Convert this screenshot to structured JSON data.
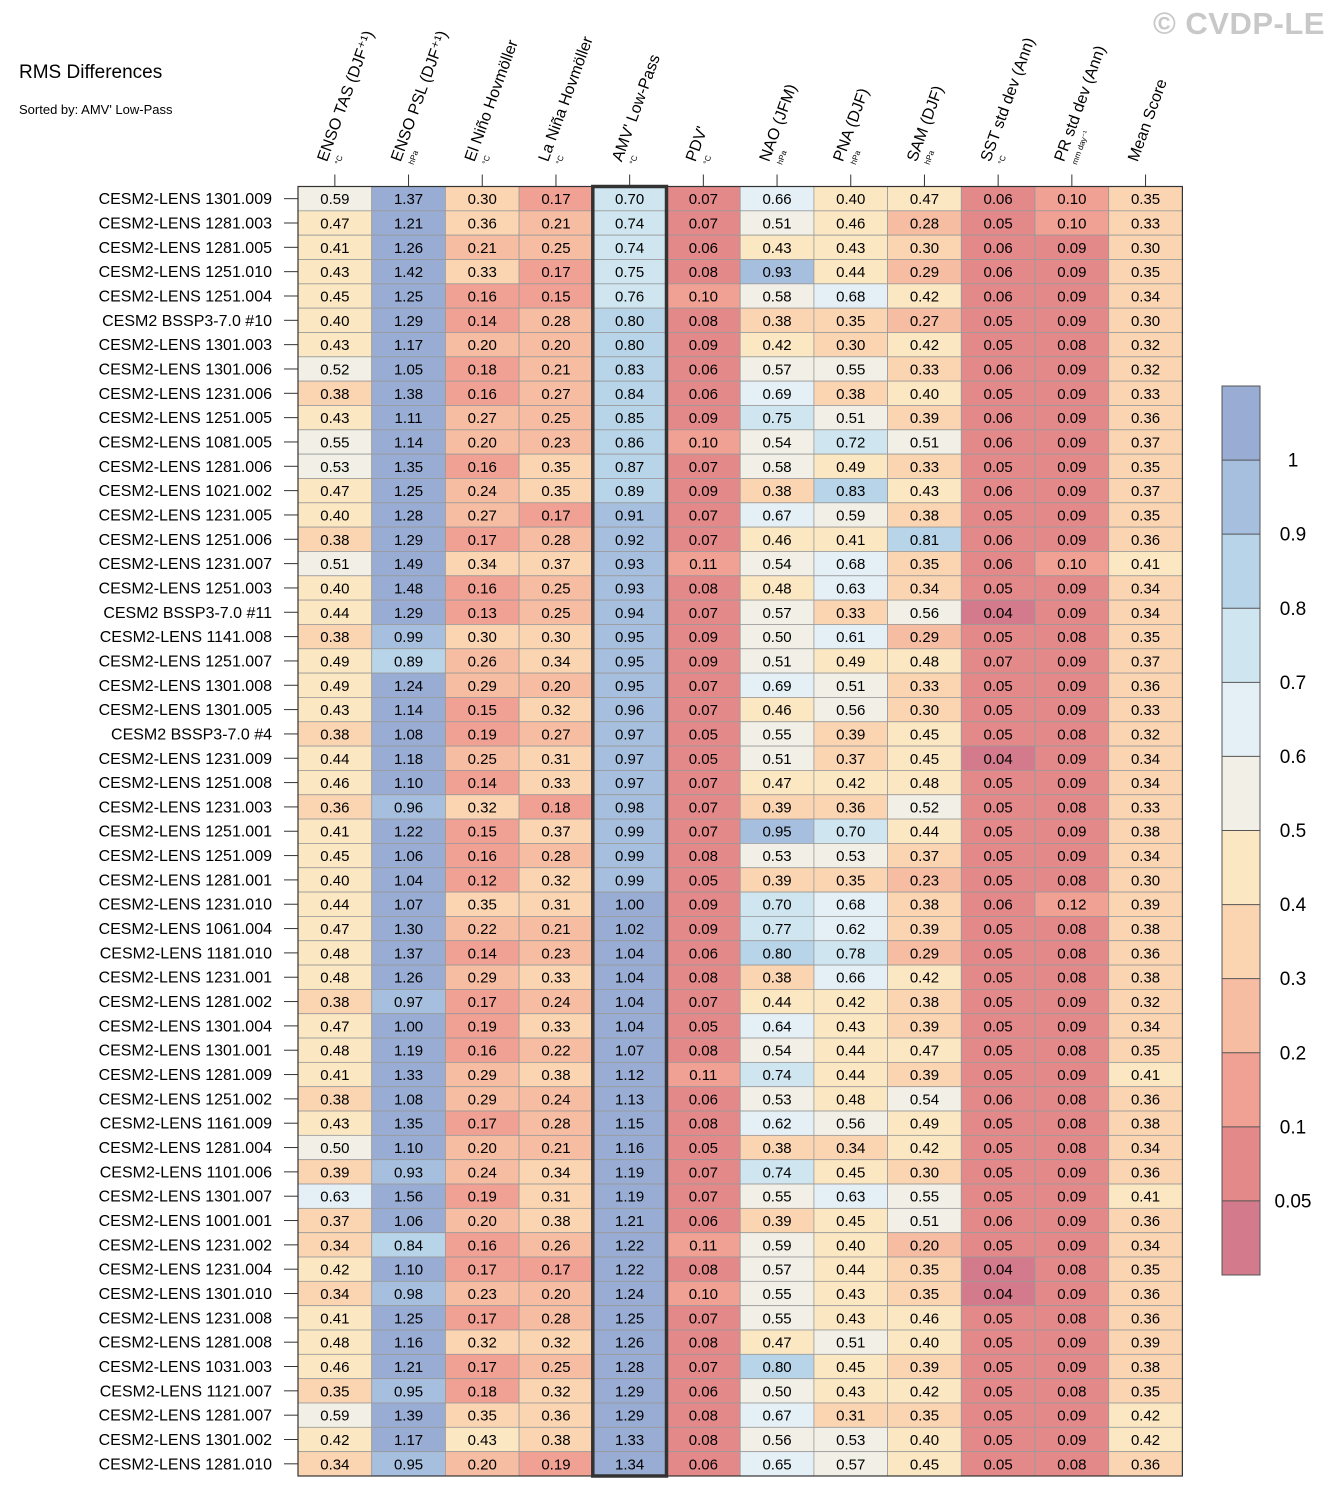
{
  "title": "RMS Differences",
  "subtitle": "Sorted by: AMV' Low-Pass",
  "watermark": "© CVDP-LE",
  "chart_data": {
    "type": "heatmap",
    "columns": [
      {
        "name": "ENSO TAS (DJF⁺¹)",
        "unit": "°C"
      },
      {
        "name": "ENSO PSL (DJF⁺¹)",
        "unit": "hPa"
      },
      {
        "name": "El Niño Hovmöller",
        "unit": "°C"
      },
      {
        "name": "La Niña Hovmöller",
        "unit": "°C"
      },
      {
        "name": "AMV' Low-Pass",
        "unit": "°C"
      },
      {
        "name": "PDV'",
        "unit": "°C"
      },
      {
        "name": "NAO (JFM)",
        "unit": "hPa"
      },
      {
        "name": "PNA (DJF)",
        "unit": "hPa"
      },
      {
        "name": "SAM (DJF)",
        "unit": "hPa"
      },
      {
        "name": "SST std dev (Ann)",
        "unit": "°C"
      },
      {
        "name": "PR std dev (Ann)",
        "unit": "mm day⁻¹"
      },
      {
        "name": "Mean Score",
        "unit": ""
      }
    ],
    "highlight_column": "AMV' Low-Pass",
    "rows": [
      "CESM2-LENS 1301.009",
      "CESM2-LENS 1281.003",
      "CESM2-LENS 1281.005",
      "CESM2-LENS 1251.010",
      "CESM2-LENS 1251.004",
      "CESM2 BSSP3-7.0 #10",
      "CESM2-LENS 1301.003",
      "CESM2-LENS 1301.006",
      "CESM2-LENS 1231.006",
      "CESM2-LENS 1251.005",
      "CESM2-LENS 1081.005",
      "CESM2-LENS 1281.006",
      "CESM2-LENS 1021.002",
      "CESM2-LENS 1231.005",
      "CESM2-LENS 1251.006",
      "CESM2-LENS 1231.007",
      "CESM2-LENS 1251.003",
      "CESM2 BSSP3-7.0 #11",
      "CESM2-LENS 1141.008",
      "CESM2-LENS 1251.007",
      "CESM2-LENS 1301.008",
      "CESM2-LENS 1301.005",
      "CESM2 BSSP3-7.0 #4",
      "CESM2-LENS 1231.009",
      "CESM2-LENS 1251.008",
      "CESM2-LENS 1231.003",
      "CESM2-LENS 1251.001",
      "CESM2-LENS 1251.009",
      "CESM2-LENS 1281.001",
      "CESM2-LENS 1231.010",
      "CESM2-LENS 1061.004",
      "CESM2-LENS 1181.010",
      "CESM2-LENS 1231.001",
      "CESM2-LENS 1281.002",
      "CESM2-LENS 1301.004",
      "CESM2-LENS 1301.001",
      "CESM2-LENS 1281.009",
      "CESM2-LENS 1251.002",
      "CESM2-LENS 1161.009",
      "CESM2-LENS 1281.004",
      "CESM2-LENS 1101.006",
      "CESM2-LENS 1301.007",
      "CESM2-LENS 1001.001",
      "CESM2-LENS 1231.002",
      "CESM2-LENS 1231.004",
      "CESM2-LENS 1301.010",
      "CESM2-LENS 1231.008",
      "CESM2-LENS 1281.008",
      "CESM2-LENS 1031.003",
      "CESM2-LENS 1121.007",
      "CESM2-LENS 1281.007",
      "CESM2-LENS 1301.002",
      "CESM2-LENS 1281.010"
    ],
    "values": [
      [
        0.59,
        1.37,
        0.3,
        0.17,
        0.7,
        0.07,
        0.66,
        0.4,
        0.47,
        0.06,
        0.1,
        0.35
      ],
      [
        0.47,
        1.21,
        0.36,
        0.21,
        0.74,
        0.07,
        0.51,
        0.46,
        0.28,
        0.05,
        0.1,
        0.33
      ],
      [
        0.41,
        1.26,
        0.21,
        0.25,
        0.74,
        0.06,
        0.43,
        0.43,
        0.3,
        0.06,
        0.09,
        0.3
      ],
      [
        0.43,
        1.42,
        0.33,
        0.17,
        0.75,
        0.08,
        0.93,
        0.44,
        0.29,
        0.06,
        0.09,
        0.35
      ],
      [
        0.45,
        1.25,
        0.16,
        0.15,
        0.76,
        0.1,
        0.58,
        0.68,
        0.42,
        0.06,
        0.09,
        0.34
      ],
      [
        0.4,
        1.29,
        0.14,
        0.28,
        0.8,
        0.08,
        0.38,
        0.35,
        0.27,
        0.05,
        0.09,
        0.3
      ],
      [
        0.43,
        1.17,
        0.2,
        0.2,
        0.8,
        0.09,
        0.42,
        0.3,
        0.42,
        0.05,
        0.08,
        0.32
      ],
      [
        0.52,
        1.05,
        0.18,
        0.21,
        0.83,
        0.06,
        0.57,
        0.55,
        0.33,
        0.06,
        0.09,
        0.32
      ],
      [
        0.38,
        1.38,
        0.16,
        0.27,
        0.84,
        0.06,
        0.69,
        0.38,
        0.4,
        0.05,
        0.09,
        0.33
      ],
      [
        0.43,
        1.11,
        0.27,
        0.25,
        0.85,
        0.09,
        0.75,
        0.51,
        0.39,
        0.06,
        0.09,
        0.36
      ],
      [
        0.55,
        1.14,
        0.2,
        0.23,
        0.86,
        0.1,
        0.54,
        0.72,
        0.51,
        0.06,
        0.09,
        0.37
      ],
      [
        0.53,
        1.35,
        0.16,
        0.35,
        0.87,
        0.07,
        0.58,
        0.49,
        0.33,
        0.05,
        0.09,
        0.35
      ],
      [
        0.47,
        1.25,
        0.24,
        0.35,
        0.89,
        0.09,
        0.38,
        0.83,
        0.43,
        0.06,
        0.09,
        0.37
      ],
      [
        0.4,
        1.28,
        0.27,
        0.17,
        0.91,
        0.07,
        0.67,
        0.59,
        0.38,
        0.05,
        0.09,
        0.35
      ],
      [
        0.38,
        1.29,
        0.17,
        0.28,
        0.92,
        0.07,
        0.46,
        0.41,
        0.81,
        0.06,
        0.09,
        0.36
      ],
      [
        0.51,
        1.49,
        0.34,
        0.37,
        0.93,
        0.11,
        0.54,
        0.68,
        0.35,
        0.06,
        0.1,
        0.41
      ],
      [
        0.4,
        1.48,
        0.16,
        0.25,
        0.93,
        0.08,
        0.48,
        0.63,
        0.34,
        0.05,
        0.09,
        0.34
      ],
      [
        0.44,
        1.29,
        0.13,
        0.25,
        0.94,
        0.07,
        0.57,
        0.33,
        0.56,
        0.04,
        0.09,
        0.34
      ],
      [
        0.38,
        0.99,
        0.3,
        0.3,
        0.95,
        0.09,
        0.5,
        0.61,
        0.29,
        0.05,
        0.08,
        0.35
      ],
      [
        0.49,
        0.89,
        0.26,
        0.34,
        0.95,
        0.09,
        0.51,
        0.49,
        0.48,
        0.07,
        0.09,
        0.37
      ],
      [
        0.49,
        1.24,
        0.29,
        0.2,
        0.95,
        0.07,
        0.69,
        0.51,
        0.33,
        0.05,
        0.09,
        0.36
      ],
      [
        0.43,
        1.14,
        0.15,
        0.32,
        0.96,
        0.07,
        0.46,
        0.56,
        0.3,
        0.05,
        0.09,
        0.33
      ],
      [
        0.38,
        1.08,
        0.19,
        0.27,
        0.97,
        0.05,
        0.55,
        0.39,
        0.45,
        0.05,
        0.08,
        0.32
      ],
      [
        0.44,
        1.18,
        0.25,
        0.31,
        0.97,
        0.05,
        0.51,
        0.37,
        0.45,
        0.04,
        0.09,
        0.34
      ],
      [
        0.46,
        1.1,
        0.14,
        0.33,
        0.97,
        0.07,
        0.47,
        0.42,
        0.48,
        0.05,
        0.09,
        0.34
      ],
      [
        0.36,
        0.96,
        0.32,
        0.18,
        0.98,
        0.07,
        0.39,
        0.36,
        0.52,
        0.05,
        0.08,
        0.33
      ],
      [
        0.41,
        1.22,
        0.15,
        0.37,
        0.99,
        0.07,
        0.95,
        0.7,
        0.44,
        0.05,
        0.09,
        0.38
      ],
      [
        0.45,
        1.06,
        0.16,
        0.28,
        0.99,
        0.08,
        0.53,
        0.53,
        0.37,
        0.05,
        0.09,
        0.34
      ],
      [
        0.4,
        1.04,
        0.12,
        0.32,
        0.99,
        0.05,
        0.39,
        0.35,
        0.23,
        0.05,
        0.08,
        0.3
      ],
      [
        0.44,
        1.07,
        0.35,
        0.31,
        1.0,
        0.09,
        0.7,
        0.68,
        0.38,
        0.06,
        0.12,
        0.39
      ],
      [
        0.47,
        1.3,
        0.22,
        0.21,
        1.02,
        0.09,
        0.77,
        0.62,
        0.39,
        0.05,
        0.08,
        0.38
      ],
      [
        0.48,
        1.37,
        0.14,
        0.23,
        1.04,
        0.06,
        0.8,
        0.78,
        0.29,
        0.05,
        0.08,
        0.36
      ],
      [
        0.48,
        1.26,
        0.29,
        0.33,
        1.04,
        0.08,
        0.38,
        0.66,
        0.42,
        0.05,
        0.08,
        0.38
      ],
      [
        0.38,
        0.97,
        0.17,
        0.24,
        1.04,
        0.07,
        0.44,
        0.42,
        0.38,
        0.05,
        0.09,
        0.32
      ],
      [
        0.47,
        1.0,
        0.19,
        0.33,
        1.04,
        0.05,
        0.64,
        0.43,
        0.39,
        0.05,
        0.09,
        0.34
      ],
      [
        0.48,
        1.19,
        0.16,
        0.22,
        1.07,
        0.08,
        0.54,
        0.44,
        0.47,
        0.05,
        0.08,
        0.35
      ],
      [
        0.41,
        1.33,
        0.29,
        0.38,
        1.12,
        0.11,
        0.74,
        0.44,
        0.39,
        0.05,
        0.09,
        0.41
      ],
      [
        0.38,
        1.08,
        0.29,
        0.24,
        1.13,
        0.06,
        0.53,
        0.48,
        0.54,
        0.06,
        0.08,
        0.36
      ],
      [
        0.43,
        1.35,
        0.17,
        0.28,
        1.15,
        0.08,
        0.62,
        0.56,
        0.49,
        0.05,
        0.08,
        0.38
      ],
      [
        0.5,
        1.1,
        0.2,
        0.21,
        1.16,
        0.05,
        0.38,
        0.34,
        0.42,
        0.05,
        0.08,
        0.34
      ],
      [
        0.39,
        0.93,
        0.24,
        0.34,
        1.19,
        0.07,
        0.74,
        0.45,
        0.3,
        0.05,
        0.09,
        0.36
      ],
      [
        0.63,
        1.56,
        0.19,
        0.31,
        1.19,
        0.07,
        0.55,
        0.63,
        0.55,
        0.05,
        0.09,
        0.41
      ],
      [
        0.37,
        1.06,
        0.2,
        0.38,
        1.21,
        0.06,
        0.39,
        0.45,
        0.51,
        0.06,
        0.09,
        0.36
      ],
      [
        0.34,
        0.84,
        0.16,
        0.26,
        1.22,
        0.11,
        0.59,
        0.4,
        0.2,
        0.05,
        0.09,
        0.34
      ],
      [
        0.42,
        1.1,
        0.17,
        0.17,
        1.22,
        0.08,
        0.57,
        0.44,
        0.35,
        0.04,
        0.08,
        0.35
      ],
      [
        0.34,
        0.98,
        0.23,
        0.2,
        1.24,
        0.1,
        0.55,
        0.43,
        0.35,
        0.04,
        0.09,
        0.36
      ],
      [
        0.41,
        1.25,
        0.17,
        0.28,
        1.25,
        0.07,
        0.55,
        0.43,
        0.46,
        0.05,
        0.08,
        0.36
      ],
      [
        0.48,
        1.16,
        0.32,
        0.32,
        1.26,
        0.08,
        0.47,
        0.51,
        0.4,
        0.05,
        0.09,
        0.39
      ],
      [
        0.46,
        1.21,
        0.17,
        0.25,
        1.28,
        0.07,
        0.8,
        0.45,
        0.39,
        0.05,
        0.09,
        0.38
      ],
      [
        0.35,
        0.95,
        0.18,
        0.32,
        1.29,
        0.06,
        0.5,
        0.43,
        0.42,
        0.05,
        0.08,
        0.35
      ],
      [
        0.59,
        1.39,
        0.35,
        0.36,
        1.29,
        0.08,
        0.67,
        0.31,
        0.35,
        0.05,
        0.09,
        0.42
      ],
      [
        0.42,
        1.17,
        0.43,
        0.38,
        1.33,
        0.08,
        0.56,
        0.53,
        0.4,
        0.05,
        0.09,
        0.42
      ],
      [
        0.34,
        0.95,
        0.2,
        0.19,
        1.34,
        0.06,
        0.65,
        0.57,
        0.45,
        0.05,
        0.08,
        0.36
      ]
    ],
    "colorbar": {
      "levels": [
        0.05,
        0.1,
        0.2,
        0.3,
        0.4,
        0.5,
        0.6,
        0.7,
        0.8,
        0.9,
        1
      ],
      "labels": [
        "0.05",
        "0.1",
        "0.2",
        "0.3",
        "0.4",
        "0.5",
        "0.6",
        "0.7",
        "0.8",
        "0.9",
        "1"
      ],
      "colors": [
        "#d37a8c",
        "#e4898a",
        "#f1a094",
        "#f7bda2",
        "#fbd5b1",
        "#fbe7c1",
        "#f1efe6",
        "#e4f0f5",
        "#cfe6f0",
        "#b7d4e8",
        "#a6bfdf",
        "#98acd4"
      ]
    }
  }
}
